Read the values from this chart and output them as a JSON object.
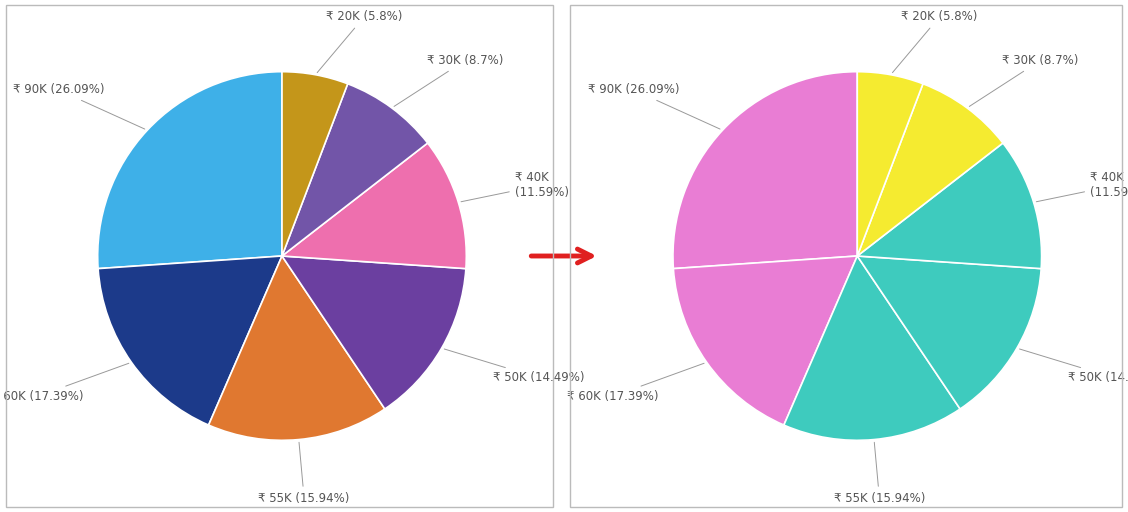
{
  "labels": [
    "₹ 90K (26.09%)",
    "₹ 60K (17.39%)",
    "₹ 55K (15.94%)",
    "₹ 50K (14.49%)",
    "₹ 40K\n(11.59%)",
    "₹ 30K (8.7%)",
    "₹ 20K (5.8%)"
  ],
  "sizes": [
    26.09,
    17.39,
    15.94,
    14.49,
    11.59,
    8.7,
    5.8
  ],
  "colors_left": [
    "#3EB0E8",
    "#1C3A8A",
    "#E07830",
    "#6B3FA0",
    "#EE6FAE",
    "#7255A8",
    "#C4961A"
  ],
  "colors_right": [
    "#E97DD4",
    "#E97DD4",
    "#3ECBBE",
    "#3ECBBE",
    "#3ECBBE",
    "#F5EB30",
    "#F5EB30"
  ],
  "background_color": "#FFFFFF",
  "wedge_linecolor": "#FFFFFF",
  "arrow_color": "#E02020",
  "text_color": "#555555",
  "font_size": 8.5,
  "startangle": 90
}
